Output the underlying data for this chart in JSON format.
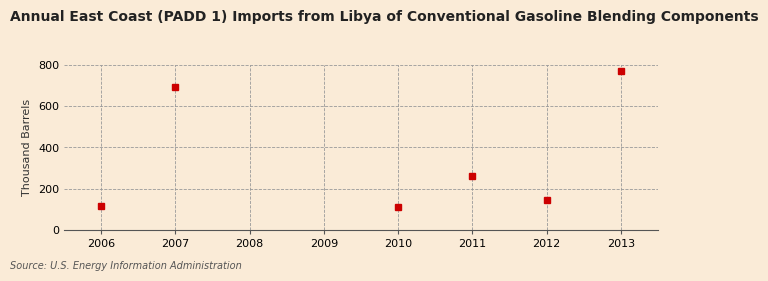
{
  "title": "Annual East Coast (PADD 1) Imports from Libya of Conventional Gasoline Blending Components",
  "ylabel": "Thousand Barrels",
  "source_text": "Source: U.S. Energy Information Administration",
  "background_color": "#faebd7",
  "x_years": [
    2006,
    2007,
    2008,
    2009,
    2010,
    2011,
    2012,
    2013
  ],
  "data_points": {
    "2006": 113,
    "2007": 693,
    "2010": 110,
    "2011": 262,
    "2012": 144,
    "2013": 770
  },
  "marker_color": "#cc0000",
  "marker_style": "s",
  "marker_size": 4,
  "ylim": [
    0,
    800
  ],
  "yticks": [
    0,
    200,
    400,
    600,
    800
  ],
  "grid_color": "#999999",
  "title_fontsize": 10,
  "ylabel_fontsize": 8,
  "tick_fontsize": 8,
  "source_fontsize": 7
}
